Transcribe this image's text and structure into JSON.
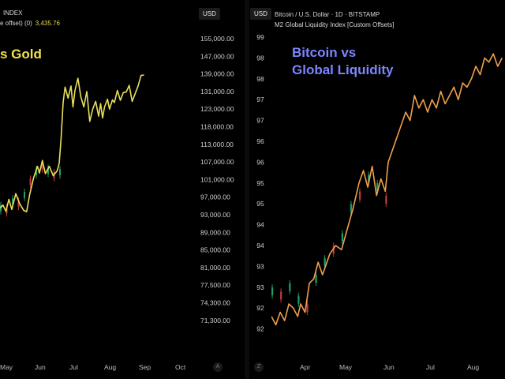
{
  "left_panel": {
    "header_line1": "INDEX",
    "header_line2": "e offset) (0)",
    "header_value": "3,435.76",
    "title": "s Gold",
    "title_color": "#f3e14a",
    "line_color": "#eadf5a",
    "usd_label": "USD",
    "axis_button": "A"
  },
  "right_panel": {
    "header_line1": "Bitcoin / U.S. Dollar · 1D · BITSTAMP",
    "header_line2": "M2 Global Liquidity Index [Custom Offsets]",
    "title": "Bitcoin vs\nGlobal Liquidity",
    "title_color": "#7b86ff",
    "line_color": "#f0a04b",
    "usd_label": "USD",
    "axis_button": "Z"
  },
  "chart_data": [
    {
      "type": "line",
      "title": "s Gold",
      "xlabel": "",
      "ylabel": "",
      "x_ticks": [
        "May",
        "Jun",
        "Jul",
        "Aug",
        "Sep",
        "Oct"
      ],
      "y_ticks": [
        "155,000.00",
        "147,000.00",
        "139,000.00",
        "131,000.00",
        "123,000.00",
        "118,000.00",
        "113,000.00",
        "107,000.00",
        "101,000.00",
        "97,000.00",
        "93,000.00",
        "89,000.00",
        "85,000.00",
        "81,000.00",
        "77,500.00",
        "74,300.00",
        "71,300.00"
      ],
      "series": [
        {
          "name": "",
          "style": "line",
          "x": [
            0.0,
            0.15,
            0.3,
            0.45,
            0.6,
            0.8,
            1.0,
            1.2,
            1.35,
            1.5,
            1.7,
            1.9,
            2.0,
            2.15,
            2.3,
            2.5,
            2.7,
            2.9,
            3.0,
            3.1,
            3.2,
            3.3,
            3.45,
            3.6,
            3.7,
            3.8,
            3.95,
            4.1,
            4.25,
            4.4,
            4.55,
            4.7,
            4.85,
            5.0,
            5.1,
            5.2,
            5.3,
            5.45,
            5.55,
            5.7,
            5.8,
            5.95,
            6.1,
            6.25,
            6.4,
            6.55,
            6.7,
            6.85,
            7.0,
            7.15,
            7.3
          ],
          "values": [
            94500,
            95200,
            93800,
            96500,
            94200,
            97800,
            95500,
            94000,
            93700,
            97500,
            101500,
            105500,
            103200,
            107500,
            103000,
            105500,
            102300,
            104000,
            106500,
            115000,
            126000,
            133000,
            128000,
            133500,
            124000,
            131500,
            137000,
            128500,
            124000,
            131000,
            119500,
            123000,
            126500,
            121000,
            125500,
            120500,
            124000,
            127500,
            123000,
            127200,
            126000,
            131500,
            127000,
            130500,
            130800,
            133800,
            126500,
            130000,
            133500,
            138300,
            138500
          ]
        },
        {
          "name": "",
          "style": "candles",
          "x": [
            0.0,
            0.3,
            0.6,
            0.9,
            1.2,
            1.5,
            1.8,
            2.1,
            2.4,
            2.7,
            3.0
          ],
          "values": [
            94500,
            94000,
            96000,
            95500,
            97500,
            100500,
            103500,
            105500,
            104000,
            102500,
            103500
          ]
        }
      ]
    },
    {
      "type": "line",
      "title": "Bitcoin vs Global Liquidity",
      "xlabel": "",
      "ylabel": "",
      "x_ticks": [
        "Apr",
        "May",
        "Jun",
        "Jul",
        "Aug"
      ],
      "y_ticks": [
        "99",
        "98",
        "98",
        "97",
        "97",
        "96",
        "96",
        "95",
        "95",
        "94",
        "94",
        "93",
        "93",
        "92",
        "92"
      ],
      "series": [
        {
          "name": "M2 Global Liquidity Index [Custom Offsets]",
          "style": "line",
          "x": [
            0.0,
            0.15,
            0.3,
            0.45,
            0.6,
            0.75,
            0.9,
            1.0,
            1.15,
            1.3,
            1.45,
            1.6,
            1.75,
            1.9,
            2.0,
            2.2,
            2.4,
            2.6,
            2.8,
            3.0,
            3.15,
            3.3,
            3.45,
            3.6,
            3.75,
            3.9,
            4.0,
            4.15,
            4.3,
            4.45,
            4.6,
            4.75,
            4.9,
            5.05,
            5.2,
            5.35,
            5.5,
            5.65,
            5.8,
            5.95,
            6.1,
            6.25,
            6.4,
            6.55,
            6.7,
            6.85,
            7.0,
            7.15,
            7.3,
            7.45,
            7.6,
            7.75,
            7.9
          ],
          "values": [
            92.3,
            92.1,
            92.4,
            92.2,
            92.6,
            92.5,
            92.3,
            92.6,
            92.4,
            93.1,
            93.2,
            93.6,
            93.3,
            93.6,
            93.8,
            94.0,
            93.9,
            94.4,
            94.9,
            95.5,
            95.8,
            95.4,
            95.9,
            95.2,
            95.6,
            95.3,
            96.0,
            96.3,
            96.6,
            96.9,
            97.2,
            97.0,
            97.6,
            97.3,
            97.5,
            97.2,
            97.5,
            97.3,
            97.7,
            97.4,
            97.6,
            97.8,
            97.5,
            97.9,
            97.8,
            98.0,
            98.3,
            98.1,
            98.5,
            98.4,
            98.6,
            98.3,
            98.5
          ]
        },
        {
          "name": "Bitcoin / U.S. Dollar",
          "style": "candles",
          "x": [
            0.0,
            0.3,
            0.6,
            0.9,
            1.2,
            1.5,
            1.8,
            2.1,
            2.4,
            2.7,
            3.0,
            3.3,
            3.6,
            3.9
          ],
          "values": [
            92.9,
            92.8,
            93.0,
            92.7,
            92.5,
            93.2,
            93.6,
            93.9,
            94.2,
            94.9,
            95.2,
            95.6,
            95.4,
            95.1
          ]
        }
      ]
    }
  ]
}
